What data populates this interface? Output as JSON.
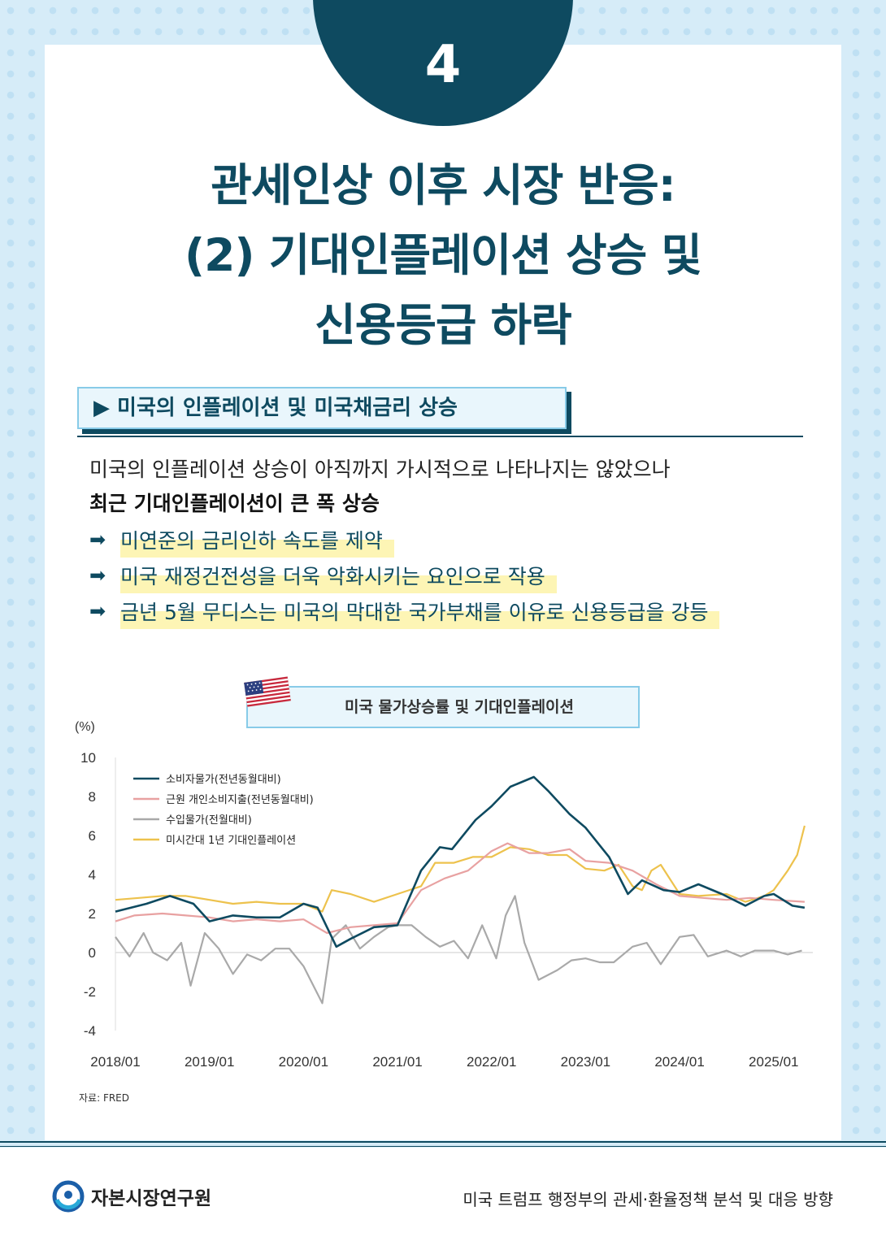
{
  "page_number": "4",
  "title_lines": [
    "관세인상 이후 시장 반응:",
    "(2) 기대인플레이션 상승 및",
    "신용등급 하락"
  ],
  "section": {
    "label": "▶ 미국의 인플레이션 및 미국채금리 상승"
  },
  "intro": [
    "미국의 인플레이션 상승이 아직까지 가시적으로 나타나지는 않았으나",
    "최근 기대인플레이션이 큰 폭 상승"
  ],
  "bullets": [
    "미연준의 금리인하 속도를 제약",
    "미국 재정건전성을 더욱 악화시키는 요인으로 작용",
    "금년 5월 무디스는 미국의 막대한 국가부채를 이유로 신용등급을 강등"
  ],
  "bullet_arrow": "➡",
  "chart_title": "미국 물가상승률 및 기대인플레이션",
  "flag_icon": "us-flag-icon",
  "chart_data": {
    "type": "line",
    "y_unit": "(%)",
    "ylim": [
      -4,
      10
    ],
    "yticks": [
      "10",
      "8",
      "6",
      "4",
      "2",
      "0",
      "-2",
      "-4"
    ],
    "xlim": [
      "2018/01",
      "2025/06"
    ],
    "xticks": [
      "2018/01",
      "2019/01",
      "2020/01",
      "2021/01",
      "2022/01",
      "2023/01",
      "2024/01",
      "2025/01"
    ],
    "legend_position": "top-left",
    "series": [
      {
        "name": "소비자물가(전년동월대비)",
        "color": "#0e4a60",
        "points": [
          [
            2018.0,
            2.1
          ],
          [
            2018.33,
            2.5
          ],
          [
            2018.58,
            2.9
          ],
          [
            2018.83,
            2.5
          ],
          [
            2019.0,
            1.6
          ],
          [
            2019.25,
            1.9
          ],
          [
            2019.5,
            1.8
          ],
          [
            2019.75,
            1.8
          ],
          [
            2020.0,
            2.5
          ],
          [
            2020.15,
            2.3
          ],
          [
            2020.35,
            0.3
          ],
          [
            2020.5,
            0.7
          ],
          [
            2020.75,
            1.3
          ],
          [
            2021.0,
            1.4
          ],
          [
            2021.25,
            4.2
          ],
          [
            2021.45,
            5.4
          ],
          [
            2021.58,
            5.3
          ],
          [
            2021.83,
            6.8
          ],
          [
            2022.0,
            7.5
          ],
          [
            2022.2,
            8.5
          ],
          [
            2022.45,
            9.0
          ],
          [
            2022.6,
            8.3
          ],
          [
            2022.83,
            7.1
          ],
          [
            2023.0,
            6.4
          ],
          [
            2023.25,
            4.9
          ],
          [
            2023.45,
            3.0
          ],
          [
            2023.6,
            3.7
          ],
          [
            2023.83,
            3.2
          ],
          [
            2024.0,
            3.1
          ],
          [
            2024.2,
            3.5
          ],
          [
            2024.45,
            3.0
          ],
          [
            2024.7,
            2.4
          ],
          [
            2024.9,
            2.9
          ],
          [
            2025.0,
            3.0
          ],
          [
            2025.2,
            2.4
          ],
          [
            2025.33,
            2.3
          ]
        ]
      },
      {
        "name": "근원 개인소비지출(전년동월대비)",
        "color": "#e8a1a1",
        "points": [
          [
            2018.0,
            1.6
          ],
          [
            2018.2,
            1.9
          ],
          [
            2018.5,
            2.0
          ],
          [
            2018.75,
            1.9
          ],
          [
            2019.0,
            1.8
          ],
          [
            2019.25,
            1.6
          ],
          [
            2019.5,
            1.7
          ],
          [
            2019.75,
            1.6
          ],
          [
            2020.0,
            1.7
          ],
          [
            2020.25,
            1.0
          ],
          [
            2020.5,
            1.3
          ],
          [
            2020.75,
            1.4
          ],
          [
            2021.0,
            1.5
          ],
          [
            2021.25,
            3.2
          ],
          [
            2021.5,
            3.8
          ],
          [
            2021.75,
            4.2
          ],
          [
            2022.0,
            5.2
          ],
          [
            2022.17,
            5.6
          ],
          [
            2022.4,
            5.1
          ],
          [
            2022.6,
            5.1
          ],
          [
            2022.83,
            5.3
          ],
          [
            2023.0,
            4.7
          ],
          [
            2023.25,
            4.6
          ],
          [
            2023.5,
            4.2
          ],
          [
            2023.75,
            3.5
          ],
          [
            2024.0,
            2.9
          ],
          [
            2024.25,
            2.8
          ],
          [
            2024.5,
            2.7
          ],
          [
            2024.75,
            2.8
          ],
          [
            2025.0,
            2.7
          ],
          [
            2025.33,
            2.6
          ]
        ]
      },
      {
        "name": "수입물가(전월대비)",
        "color": "#a9a9a9",
        "points": [
          [
            2018.0,
            0.8
          ],
          [
            2018.15,
            -0.2
          ],
          [
            2018.3,
            1.0
          ],
          [
            2018.4,
            0.0
          ],
          [
            2018.55,
            -0.4
          ],
          [
            2018.7,
            0.5
          ],
          [
            2018.8,
            -1.7
          ],
          [
            2018.95,
            1.0
          ],
          [
            2019.1,
            0.2
          ],
          [
            2019.25,
            -1.1
          ],
          [
            2019.4,
            -0.1
          ],
          [
            2019.55,
            -0.4
          ],
          [
            2019.7,
            0.2
          ],
          [
            2019.85,
            0.2
          ],
          [
            2020.0,
            -0.7
          ],
          [
            2020.2,
            -2.6
          ],
          [
            2020.3,
            0.7
          ],
          [
            2020.45,
            1.4
          ],
          [
            2020.6,
            0.2
          ],
          [
            2020.75,
            0.8
          ],
          [
            2020.9,
            1.3
          ],
          [
            2021.0,
            1.4
          ],
          [
            2021.15,
            1.4
          ],
          [
            2021.3,
            0.8
          ],
          [
            2021.45,
            0.3
          ],
          [
            2021.6,
            0.6
          ],
          [
            2021.75,
            -0.3
          ],
          [
            2021.9,
            1.4
          ],
          [
            2022.05,
            -0.3
          ],
          [
            2022.15,
            1.9
          ],
          [
            2022.25,
            2.9
          ],
          [
            2022.35,
            0.5
          ],
          [
            2022.5,
            -1.4
          ],
          [
            2022.7,
            -0.9
          ],
          [
            2022.85,
            -0.4
          ],
          [
            2023.0,
            -0.3
          ],
          [
            2023.15,
            -0.5
          ],
          [
            2023.3,
            -0.5
          ],
          [
            2023.5,
            0.3
          ],
          [
            2023.65,
            0.5
          ],
          [
            2023.8,
            -0.6
          ],
          [
            2024.0,
            0.8
          ],
          [
            2024.15,
            0.9
          ],
          [
            2024.3,
            -0.2
          ],
          [
            2024.5,
            0.1
          ],
          [
            2024.65,
            -0.2
          ],
          [
            2024.8,
            0.1
          ],
          [
            2025.0,
            0.1
          ],
          [
            2025.15,
            -0.1
          ],
          [
            2025.3,
            0.1
          ]
        ]
      },
      {
        "name": "미시간대 1년 기대인플레이션",
        "color": "#edc24d",
        "points": [
          [
            2018.0,
            2.7
          ],
          [
            2018.25,
            2.8
          ],
          [
            2018.5,
            2.9
          ],
          [
            2018.75,
            2.9
          ],
          [
            2019.0,
            2.7
          ],
          [
            2019.25,
            2.5
          ],
          [
            2019.5,
            2.6
          ],
          [
            2019.75,
            2.5
          ],
          [
            2020.0,
            2.5
          ],
          [
            2020.2,
            2.1
          ],
          [
            2020.3,
            3.2
          ],
          [
            2020.5,
            3.0
          ],
          [
            2020.75,
            2.6
          ],
          [
            2021.0,
            3.0
          ],
          [
            2021.25,
            3.4
          ],
          [
            2021.4,
            4.6
          ],
          [
            2021.6,
            4.6
          ],
          [
            2021.8,
            4.9
          ],
          [
            2022.0,
            4.9
          ],
          [
            2022.2,
            5.4
          ],
          [
            2022.4,
            5.3
          ],
          [
            2022.6,
            5.0
          ],
          [
            2022.8,
            5.0
          ],
          [
            2023.0,
            4.3
          ],
          [
            2023.2,
            4.2
          ],
          [
            2023.35,
            4.5
          ],
          [
            2023.5,
            3.4
          ],
          [
            2023.6,
            3.2
          ],
          [
            2023.7,
            4.2
          ],
          [
            2023.8,
            4.5
          ],
          [
            2024.0,
            3.0
          ],
          [
            2024.2,
            2.9
          ],
          [
            2024.5,
            3.0
          ],
          [
            2024.7,
            2.6
          ],
          [
            2024.9,
            2.9
          ],
          [
            2025.0,
            3.2
          ],
          [
            2025.15,
            4.2
          ],
          [
            2025.25,
            5.0
          ],
          [
            2025.33,
            6.5
          ]
        ]
      }
    ]
  },
  "source": "자료: FRED",
  "footer": {
    "logo_icon": "kcmi-logo-icon",
    "org_name": "자본시장연구원",
    "report_title": "미국 트럼프 행정부의 관세·환율정책 분석 및 대응 방향"
  }
}
